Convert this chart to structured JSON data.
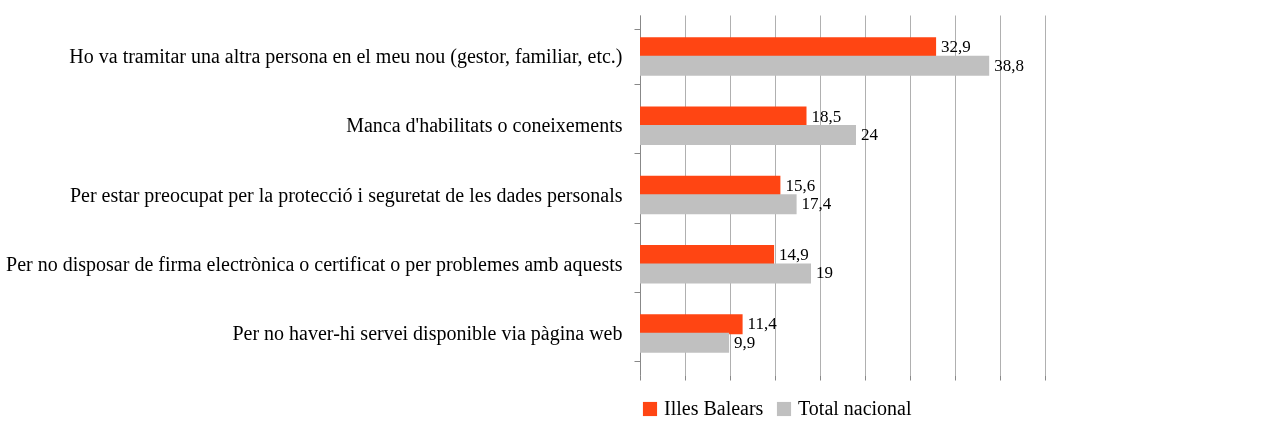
{
  "chart_data": {
    "type": "bar",
    "orientation": "horizontal",
    "categories": [
      "Ho va tramitar una altra persona en el meu nou (gestor, familiar, etc.)",
      "Manca d'habilitats o coneixements",
      "Per estar preocupat per la protecció i seguretat de les dades personals",
      "Per no disposar de firma electrònica o certificat o per problemes amb aquests",
      "Per no haver-hi servei disponible via pàgina web"
    ],
    "series": [
      {
        "name": "Illes Balears",
        "color": "#ff4513",
        "values": [
          32.9,
          18.5,
          15.6,
          14.9,
          11.4
        ],
        "value_labels": [
          "32,9",
          "18,5",
          "15,6",
          "14,9",
          "11,4"
        ]
      },
      {
        "name": "Total nacional",
        "color": "#c0c0c0",
        "values": [
          38.8,
          24,
          17.4,
          19,
          9.9
        ],
        "value_labels": [
          "38,8",
          "24",
          "17,4",
          "19",
          "9,9"
        ]
      }
    ],
    "xlim": [
      0,
      45
    ],
    "xticks": [
      {
        "value": 0,
        "label": null
      },
      {
        "value": 5,
        "label": null
      },
      {
        "value": 10,
        "label": null
      },
      {
        "value": 15,
        "label": null
      },
      {
        "value": 20,
        "label": null
      },
      {
        "value": 25,
        "label": null
      },
      {
        "value": 30,
        "label": null
      },
      {
        "value": 35,
        "label": null
      },
      {
        "value": 40,
        "label": null
      },
      {
        "value": 45,
        "label": null
      }
    ],
    "tick_labels": "y",
    "grid": "x",
    "legend": "bottom"
  }
}
